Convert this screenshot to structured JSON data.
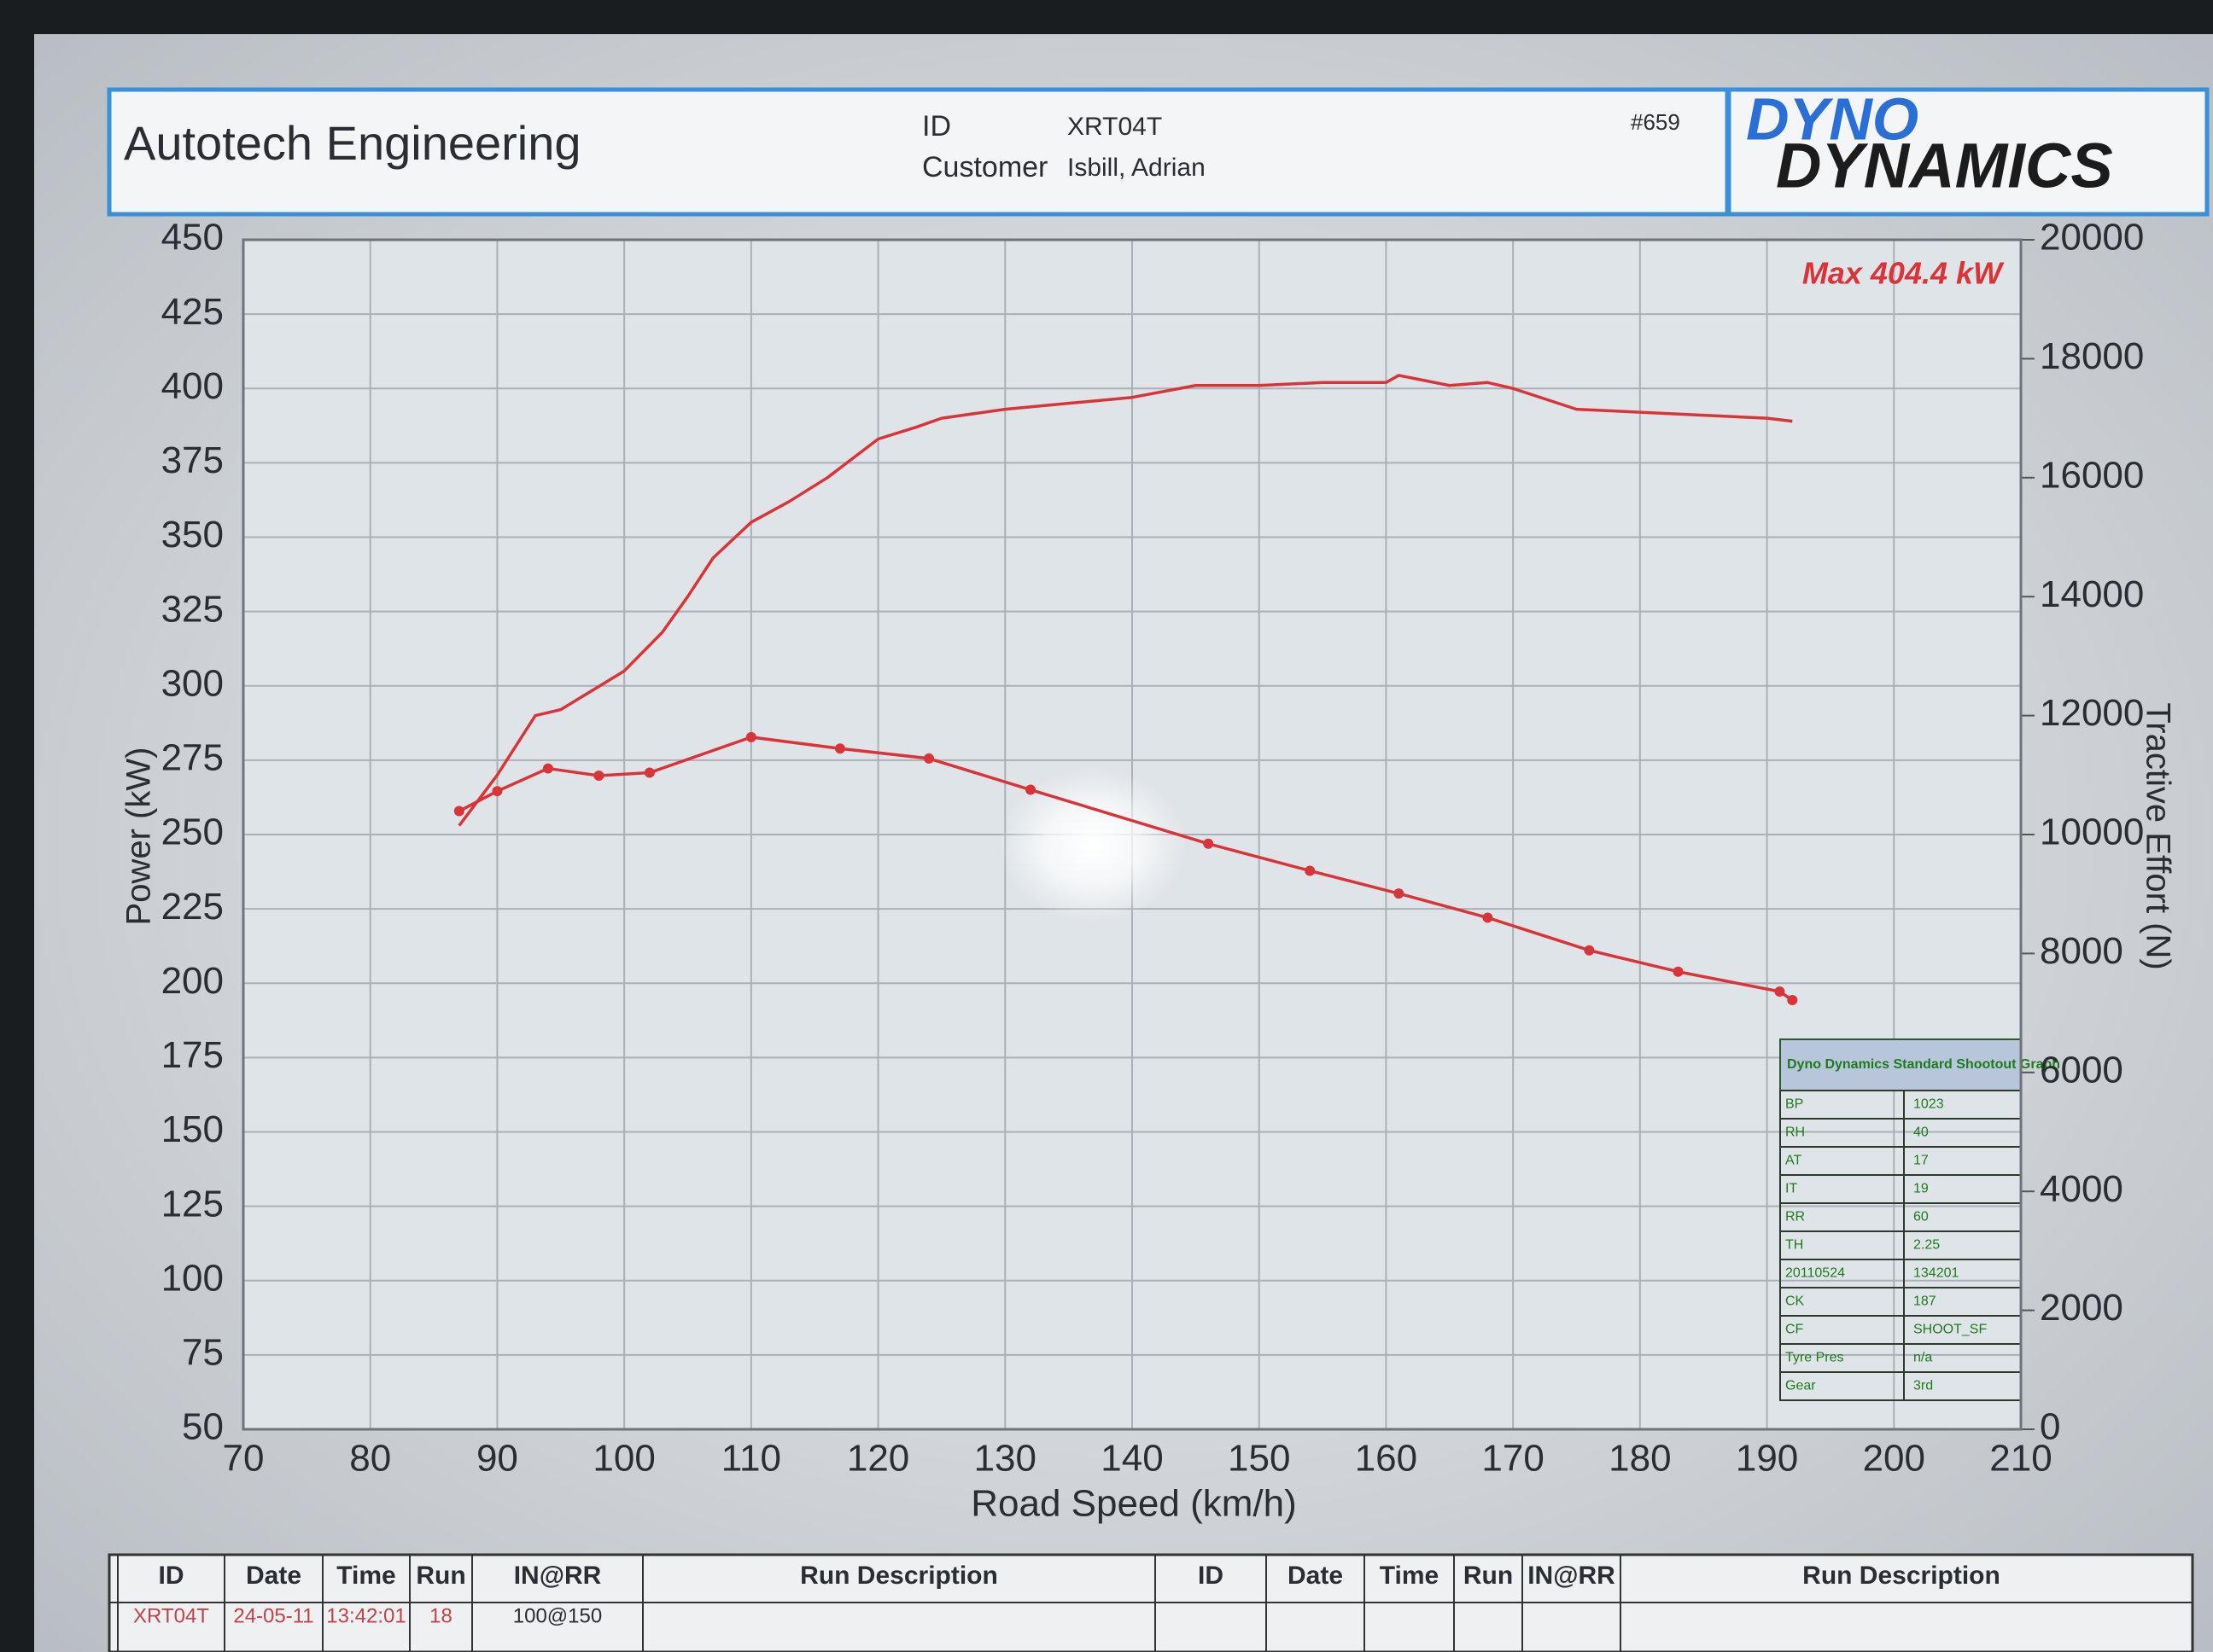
{
  "header": {
    "company": "Autotech Engineering",
    "id_label": "ID",
    "id": "XRT04T",
    "customer_label": "Customer",
    "customer": "Isbill, Adrian",
    "sheet": "#659",
    "logo_top": "DYNO",
    "logo_bottom": "DYNAMICS"
  },
  "chart_data": {
    "type": "line",
    "xlabel": "Road Speed (km/h)",
    "ylabel": "Power (kW)",
    "y2label": "Tractive Effort (N)",
    "annotation": "Max 404.4 kW",
    "xlim": [
      70,
      210
    ],
    "xticks": [
      70,
      80,
      90,
      100,
      110,
      120,
      130,
      140,
      150,
      160,
      170,
      180,
      190,
      200,
      210
    ],
    "ylim": [
      50,
      450
    ],
    "yticks": [
      50,
      75,
      100,
      125,
      150,
      175,
      200,
      225,
      250,
      275,
      300,
      325,
      350,
      375,
      400,
      425,
      450
    ],
    "y2lim": [
      0,
      20000
    ],
    "y2ticks": [
      0,
      2000,
      4000,
      6000,
      8000,
      10000,
      12000,
      14000,
      16000,
      18000,
      20000
    ],
    "grid": true,
    "series": [
      {
        "color": "#d8343a",
        "x": [
          87,
          90,
          93,
          95,
          100,
          103,
          105,
          107,
          110,
          113,
          116,
          120,
          123,
          125,
          130,
          135,
          140,
          145,
          150,
          155,
          160,
          161,
          165,
          168,
          170,
          175,
          180,
          185,
          190,
          192
        ],
        "values": [
          253,
          270,
          290,
          292,
          305,
          318,
          330,
          343,
          355,
          362,
          370,
          383,
          387,
          390,
          393,
          395,
          397,
          401,
          401,
          402,
          402,
          404.4,
          401,
          402,
          400,
          393,
          392,
          391,
          390,
          389
        ]
      },
      {
        "color": "#d8343a",
        "axis": "y2",
        "markers": true,
        "x": [
          87,
          90,
          94,
          98,
          102,
          110,
          117,
          124,
          132,
          146,
          154,
          161,
          168,
          176,
          183,
          191,
          192
        ],
        "values": [
          10394,
          10729,
          11111,
          10990,
          11040,
          11637,
          11446,
          11278,
          10753,
          9845,
          9391,
          9008,
          8602,
          8053,
          7694,
          7360,
          7216
        ]
      }
    ]
  },
  "info_table": {
    "title": "Dyno Dynamics Standard Shootout Graph",
    "rows": [
      [
        "BP",
        "1023"
      ],
      [
        "RH",
        "40"
      ],
      [
        "AT",
        "17"
      ],
      [
        "IT",
        "19"
      ],
      [
        "RR",
        "60"
      ],
      [
        "TH",
        "2.25"
      ],
      [
        "20110524",
        "134201"
      ],
      [
        "CK",
        "187"
      ],
      [
        "CF",
        "SHOOT_SF"
      ],
      [
        "Tyre Pres",
        "n/a"
      ],
      [
        "Gear",
        "3rd"
      ]
    ]
  },
  "run_table": {
    "headers": [
      "ID",
      "Date",
      "Time",
      "Run",
      "IN@RR",
      "Run Description",
      "ID",
      "Date",
      "Time",
      "Run",
      "IN@RR",
      "Run Description"
    ],
    "rows": [
      [
        "XRT04T",
        "24-05-11",
        "13:42:01",
        "18",
        "100@150"
      ]
    ]
  }
}
